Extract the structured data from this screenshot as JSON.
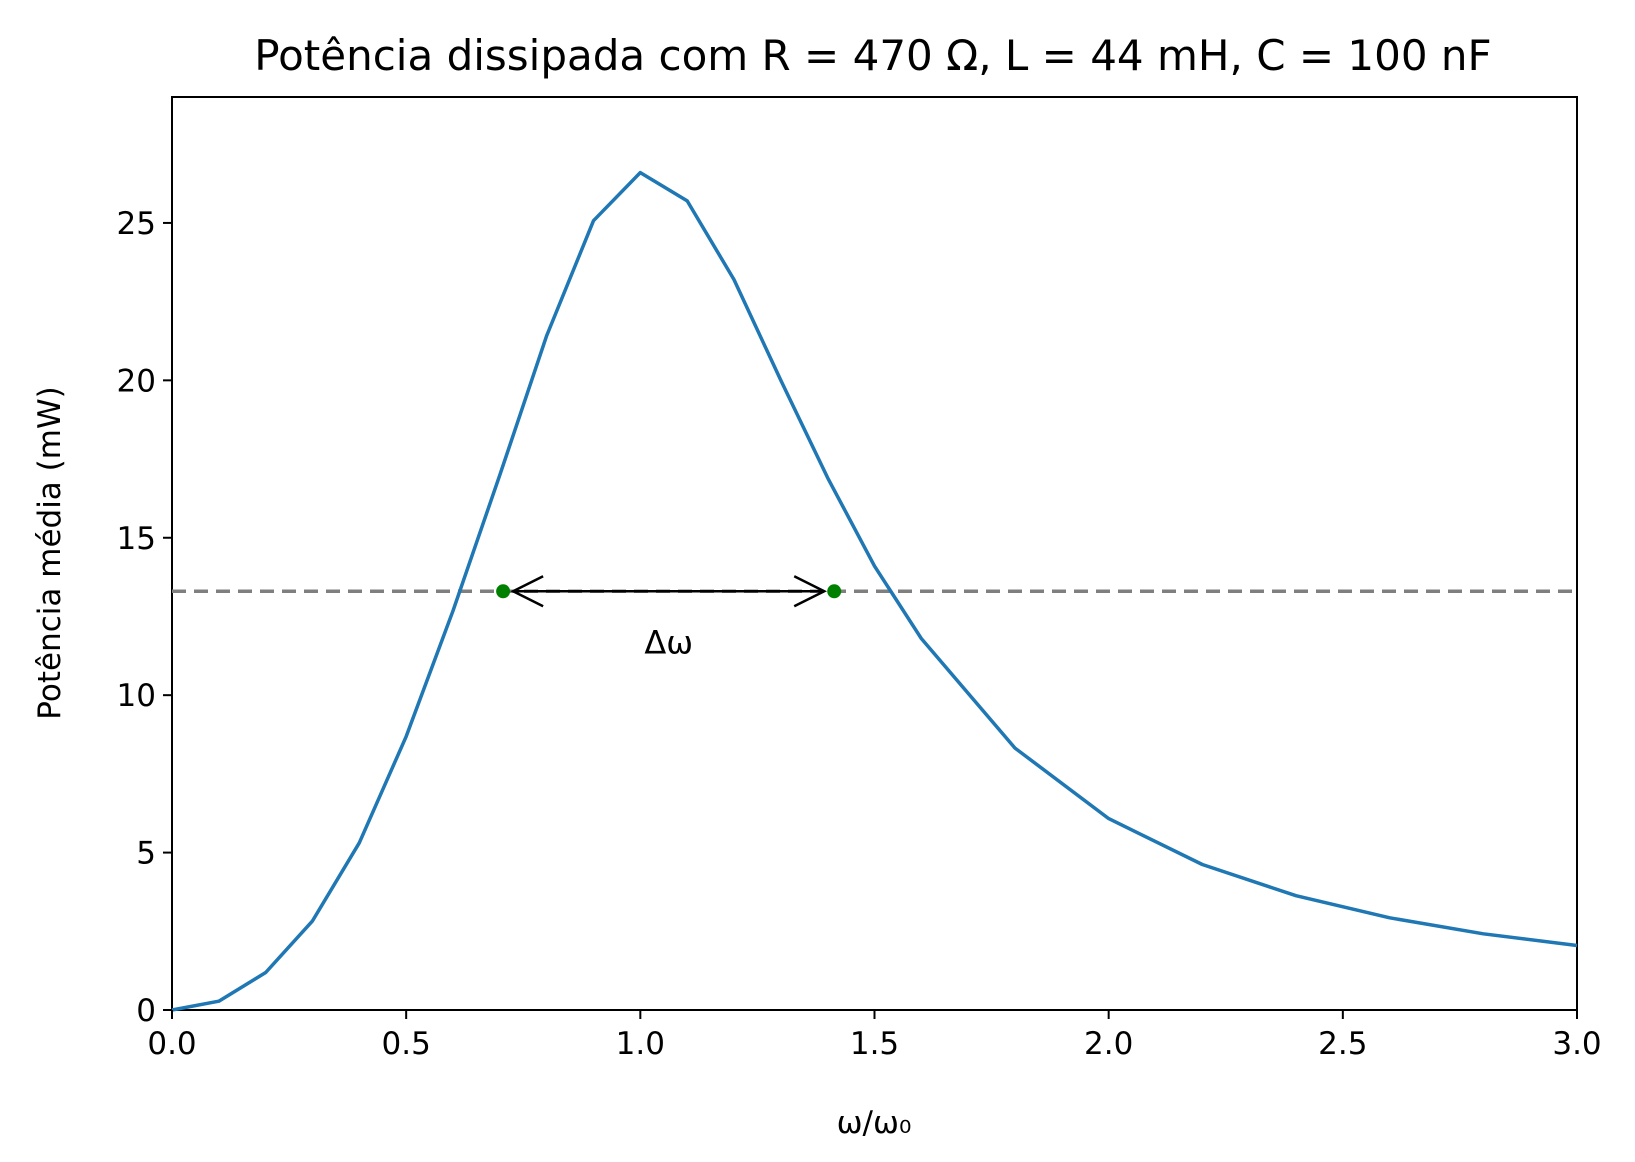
{
  "chart_data": {
    "type": "line",
    "title": "Potência dissipada com R = 470 Ω, L = 44 mH, C = 100 nF",
    "xlabel": "ω/ω₀",
    "ylabel": "Potência média (mW)",
    "xlim": [
      0,
      3
    ],
    "ylim": [
      0,
      29
    ],
    "xticks": [
      "0.0",
      "0.5",
      "1.0",
      "1.5",
      "2.0",
      "2.5",
      "3.0"
    ],
    "yticks": [
      "0",
      "5",
      "10",
      "15",
      "20",
      "25"
    ],
    "grid": false,
    "series": [
      {
        "color": "#1f77b4",
        "x": [
          0.0,
          0.1,
          0.2,
          0.3,
          0.4,
          0.5,
          0.6,
          0.7,
          0.8,
          0.9,
          1.0,
          1.1,
          1.2,
          1.3,
          1.4,
          1.5,
          1.6,
          1.8,
          2.0,
          2.2,
          2.4,
          2.6,
          2.8,
          3.0
        ],
        "y": [
          0.0,
          0.28,
          1.19,
          2.83,
          5.31,
          8.69,
          12.68,
          16.99,
          21.42,
          25.07,
          26.6,
          25.7,
          23.2,
          20.0,
          16.9,
          14.1,
          11.8,
          8.32,
          6.08,
          4.62,
          3.63,
          2.93,
          2.42,
          2.05
        ]
      }
    ],
    "half_power_line": {
      "y": 13.3,
      "color": "#7f7f7f",
      "style": "dashed"
    },
    "half_power_points": {
      "x": [
        0.707,
        1.414
      ],
      "y": [
        13.3,
        13.3
      ],
      "color": "#008000"
    },
    "annotation": {
      "text": "Δω",
      "x1": 0.707,
      "x2": 1.414,
      "y": 13.3
    }
  }
}
